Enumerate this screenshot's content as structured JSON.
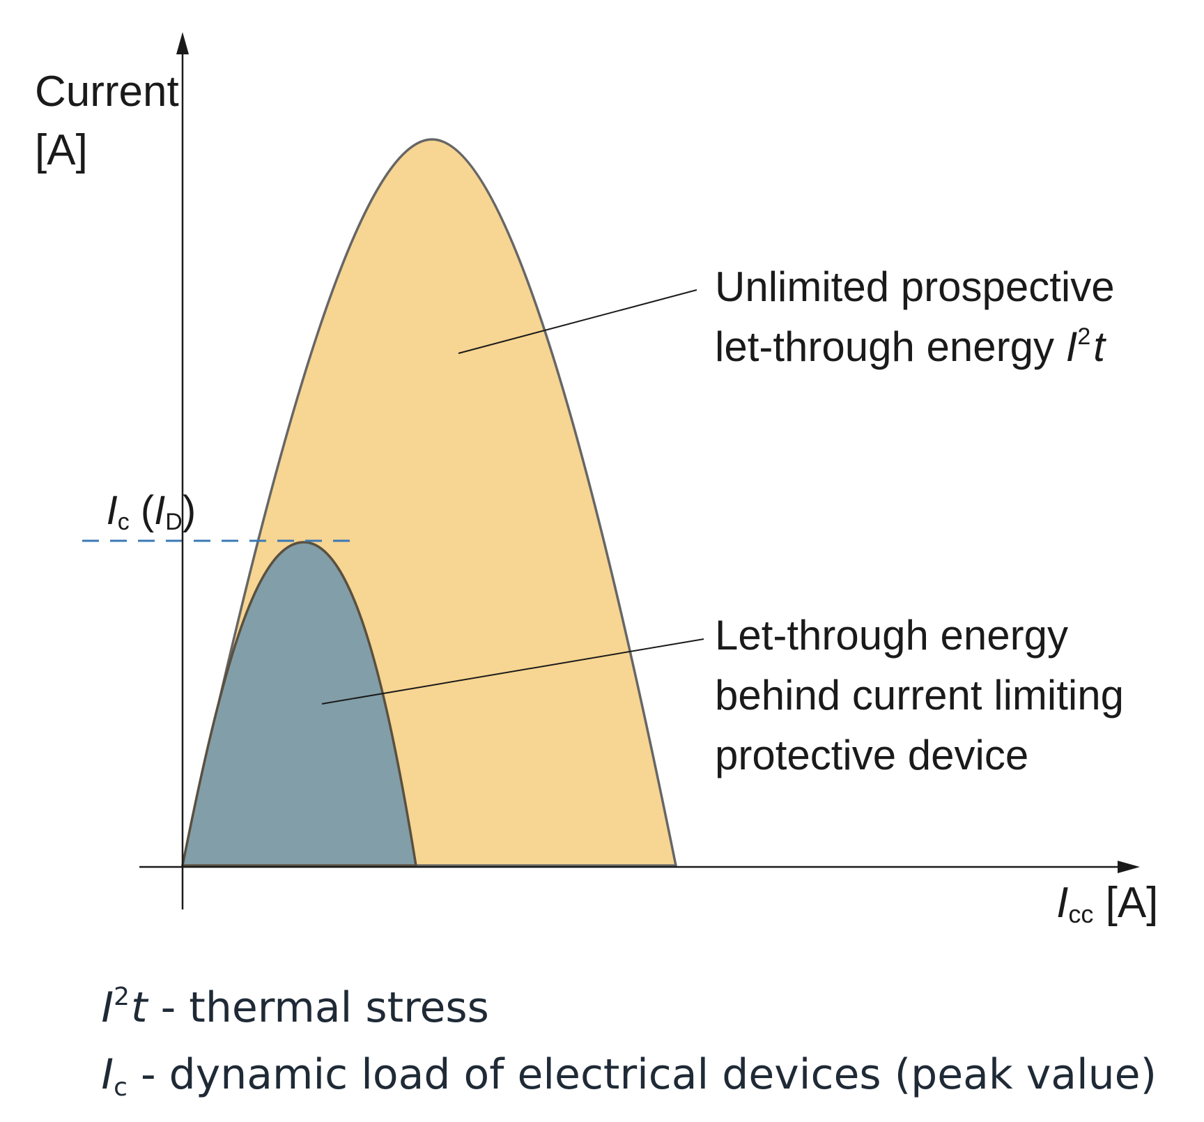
{
  "y_axis": {
    "label_line1": "Current",
    "label_line2": "[A]"
  },
  "x_axis": {
    "label_main": "I",
    "label_sub": "cc",
    "label_unit": " [A]"
  },
  "threshold": {
    "label_main": "I",
    "label_sub": "c",
    "label_paren_open": " (",
    "label_inner_main": "I",
    "label_inner_sub": "D",
    "label_paren_close": ")",
    "color": "#3a78b5"
  },
  "areas": {
    "prospective": {
      "fill": "#f7d592",
      "stroke": "#666666",
      "line1": "Unlimited prospective",
      "line2_text": "let-through energy ",
      "line2_sym": "I",
      "line2_sup": "2",
      "line2_t": "t"
    },
    "limited": {
      "fill": "#829ea8",
      "stroke": "#5a5040",
      "line1": "Let-through energy",
      "line2": "behind current limiting",
      "line3": "protective device"
    }
  },
  "legend": {
    "row1_sym": "I",
    "row1_sup": "2",
    "row1_t": "t",
    "row1_text": " - thermal stress",
    "row2_sym": "I",
    "row2_sub": "c",
    "row2_text": " - dynamic load of electrical devices (peak value)"
  }
}
